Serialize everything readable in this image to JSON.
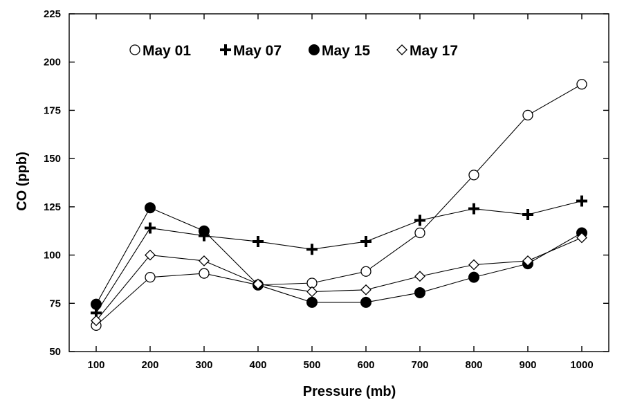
{
  "chart_data": {
    "type": "line",
    "xlabel": "Pressure (mb)",
    "ylabel": "CO (ppb)",
    "x": [
      100,
      200,
      300,
      400,
      500,
      600,
      700,
      800,
      900,
      1000
    ],
    "xlim": [
      50,
      1050
    ],
    "ylim": [
      50,
      225
    ],
    "x_ticks": [
      "100",
      "200",
      "300",
      "400",
      "500",
      "600",
      "700",
      "800",
      "900",
      "1000"
    ],
    "y_ticks": [
      "50",
      "75",
      "100",
      "125",
      "150",
      "175",
      "200",
      "225"
    ],
    "grid": false,
    "legend_position": "top-left",
    "series": [
      {
        "name": "May 01",
        "marker": "open-circle",
        "values": [
          63.5,
          88.5,
          90.5,
          84.5,
          85.5,
          91.5,
          111.5,
          141.5,
          172.5,
          188.5
        ]
      },
      {
        "name": "May 07",
        "marker": "plus",
        "values": [
          70,
          114,
          110,
          107,
          103,
          107,
          118,
          124,
          121,
          128
        ]
      },
      {
        "name": "May 15",
        "marker": "filled-circle",
        "values": [
          74.5,
          124.5,
          112.5,
          84.5,
          75.5,
          75.5,
          80.5,
          88.5,
          95.5,
          111.5
        ]
      },
      {
        "name": "May 17",
        "marker": "open-diamond",
        "values": [
          66,
          100,
          97,
          85,
          81,
          82,
          89,
          95,
          97,
          109
        ]
      }
    ]
  }
}
